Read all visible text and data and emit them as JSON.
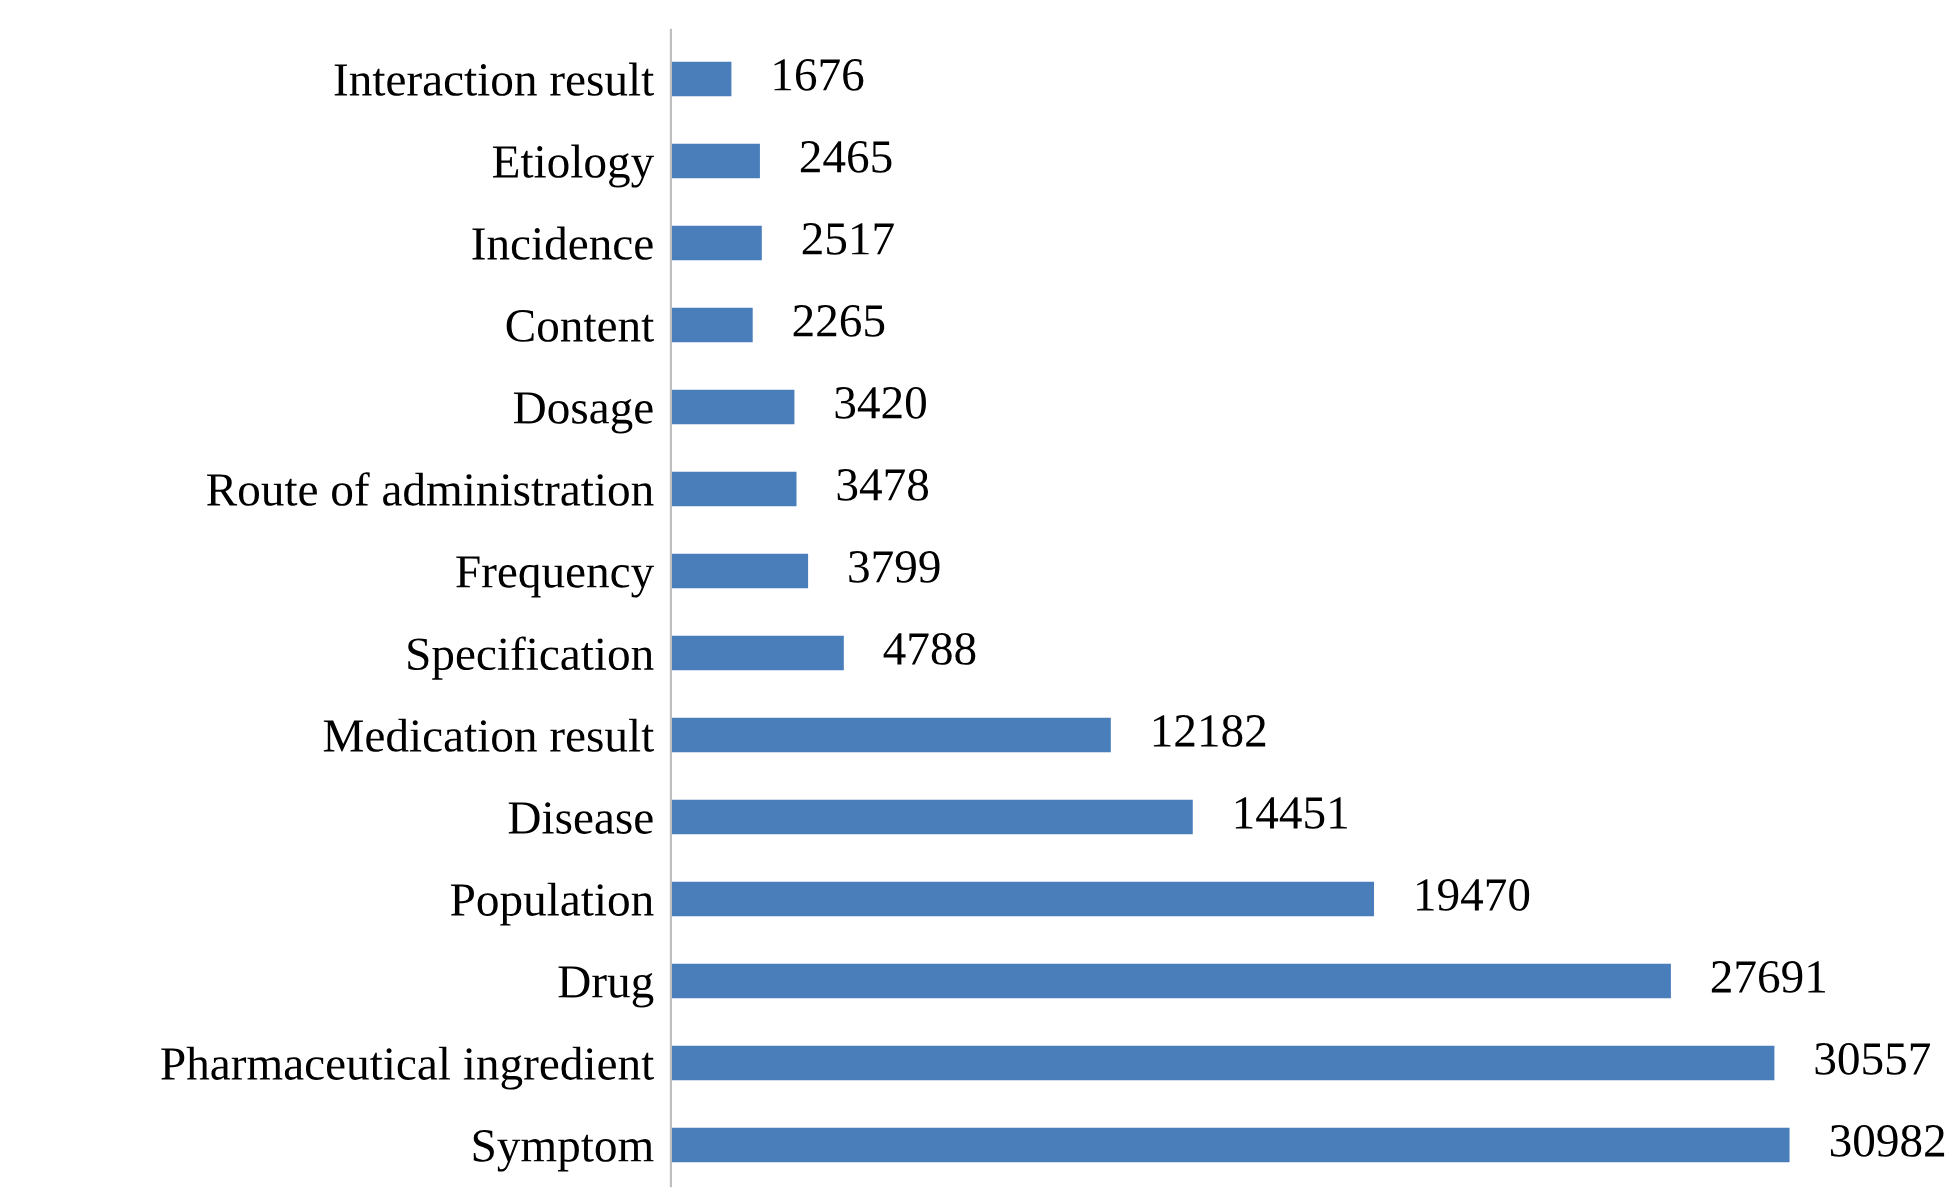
{
  "chart_data": {
    "type": "bar",
    "orientation": "horizontal",
    "tick_labels": "y",
    "data_labels": true,
    "grid": false,
    "legend": false,
    "categories": [
      "Interaction result",
      "Etiology",
      "Incidence",
      "Content",
      "Dosage",
      "Route of administration",
      "Frequency",
      "Specification",
      "Medication result",
      "Disease",
      "Population",
      "Drug",
      "Pharmaceutical ingredient",
      "Symptom"
    ],
    "values": [
      1676,
      2465,
      2517,
      2265,
      3420,
      3478,
      3799,
      4788,
      12182,
      14451,
      19470,
      27691,
      30557,
      30982
    ],
    "color": "#4a7ebb"
  }
}
